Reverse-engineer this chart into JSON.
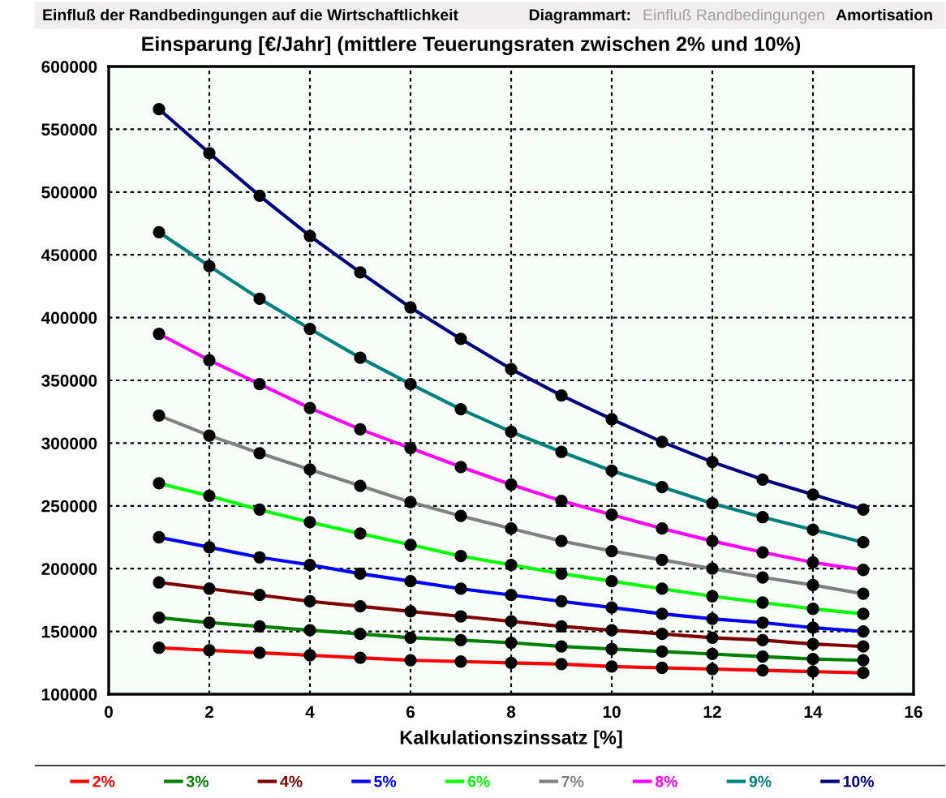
{
  "chart_data": {
    "type": "line",
    "title": "Einsparung [€/Jahr] (mittlere Teuerungsraten zwischen 2% und 10%)",
    "xlabel": "Kalkulationszinssatz [%]",
    "annotations": [
      "Einfluß der Randbedingungen auf die Wirtschaftlichkeit",
      "Diagrammart:",
      "Einfluß Randbedingungen",
      "Amortisation"
    ],
    "x": [
      1,
      2,
      3,
      4,
      5,
      6,
      7,
      8,
      9,
      10,
      11,
      12,
      13,
      14,
      15
    ],
    "xlim": [
      0,
      16
    ],
    "xticks": [
      0,
      2,
      4,
      6,
      8,
      10,
      12,
      14,
      16
    ],
    "ylim": [
      100000,
      600000
    ],
    "yticks": [
      100000,
      150000,
      200000,
      250000,
      300000,
      350000,
      400000,
      450000,
      500000,
      550000,
      600000
    ],
    "grid": true,
    "legend": "bottom",
    "marker": "circle",
    "line_style": "solid",
    "series": [
      {
        "name": "2%",
        "color": "#ff0000",
        "values": [
          137000,
          135000,
          133000,
          131000,
          129000,
          127000,
          126000,
          125000,
          124000,
          122000,
          121000,
          120000,
          119000,
          118000,
          117000
        ]
      },
      {
        "name": "3%",
        "color": "#008000",
        "values": [
          161000,
          157000,
          154000,
          151000,
          148000,
          145000,
          143000,
          141000,
          138000,
          136000,
          134000,
          132000,
          130000,
          128000,
          127000
        ]
      },
      {
        "name": "4%",
        "color": "#800000",
        "values": [
          189000,
          184000,
          179000,
          174000,
          170000,
          166000,
          162000,
          158000,
          154000,
          151000,
          148000,
          145000,
          143000,
          140000,
          138000
        ]
      },
      {
        "name": "5%",
        "color": "#0000ff",
        "values": [
          225000,
          217000,
          209000,
          203000,
          196000,
          190000,
          184000,
          179000,
          174000,
          169000,
          164000,
          160000,
          157000,
          153000,
          150000
        ]
      },
      {
        "name": "6%",
        "color": "#00ff00",
        "values": [
          268000,
          258000,
          247000,
          237000,
          228000,
          219000,
          210000,
          203000,
          196000,
          190000,
          184000,
          178000,
          173000,
          168000,
          164000
        ]
      },
      {
        "name": "7%",
        "color": "#808080",
        "values": [
          322000,
          306000,
          292000,
          279000,
          266000,
          253000,
          242000,
          232000,
          222000,
          214000,
          207000,
          200000,
          193000,
          187000,
          180000
        ]
      },
      {
        "name": "8%",
        "color": "#ff00ff",
        "values": [
          387000,
          366000,
          347000,
          328000,
          311000,
          296000,
          281000,
          267000,
          254000,
          243000,
          232000,
          222000,
          213000,
          205000,
          199000
        ]
      },
      {
        "name": "9%",
        "color": "#008080",
        "values": [
          468000,
          441000,
          415000,
          391000,
          368000,
          347000,
          327000,
          309000,
          293000,
          278000,
          265000,
          252000,
          241000,
          231000,
          221000
        ]
      },
      {
        "name": "10%",
        "color": "#000080",
        "values": [
          566000,
          531000,
          497000,
          465000,
          436000,
          408000,
          383000,
          359000,
          338000,
          319000,
          301000,
          285000,
          271000,
          259000,
          247000
        ]
      }
    ]
  }
}
